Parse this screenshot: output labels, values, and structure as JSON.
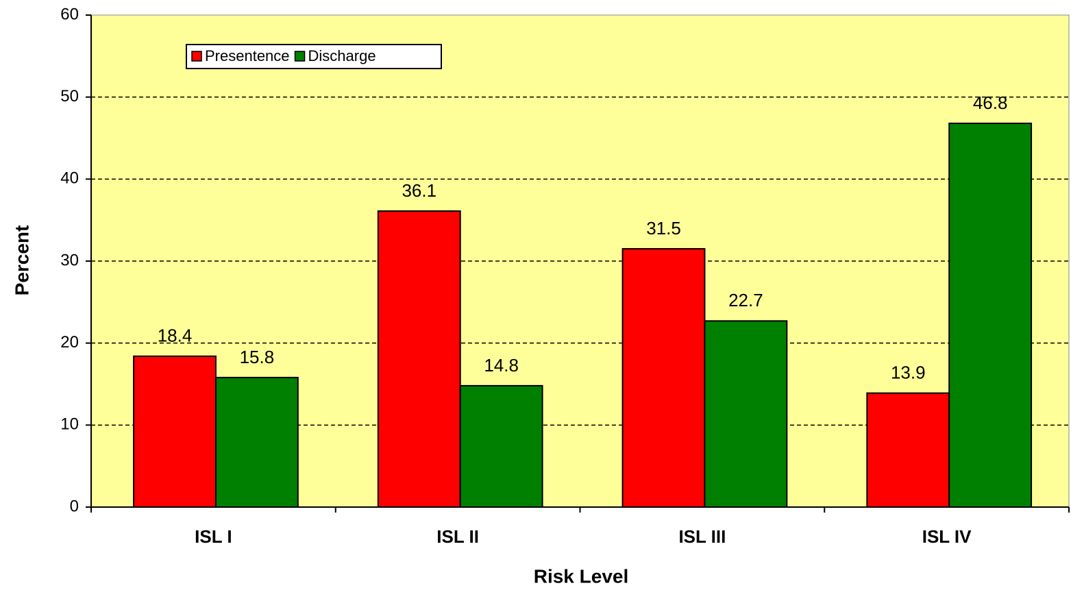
{
  "chart_data": {
    "type": "bar",
    "x_label": "Risk Level",
    "y_label": "Percent",
    "categories": [
      "ISL I",
      "ISL II",
      "ISL III",
      "ISL IV"
    ],
    "series": [
      {
        "name": "Presentence",
        "color": "#ff0000",
        "values": [
          18.4,
          36.1,
          31.5,
          13.9
        ]
      },
      {
        "name": "Discharge",
        "color": "#008000",
        "values": [
          15.8,
          14.8,
          22.7,
          46.8
        ]
      }
    ],
    "ylim": [
      0,
      60
    ],
    "yticks": [
      0,
      10,
      20,
      30,
      40,
      50,
      60
    ],
    "grid": true,
    "legend": "top-left",
    "background": "#ffff99"
  }
}
